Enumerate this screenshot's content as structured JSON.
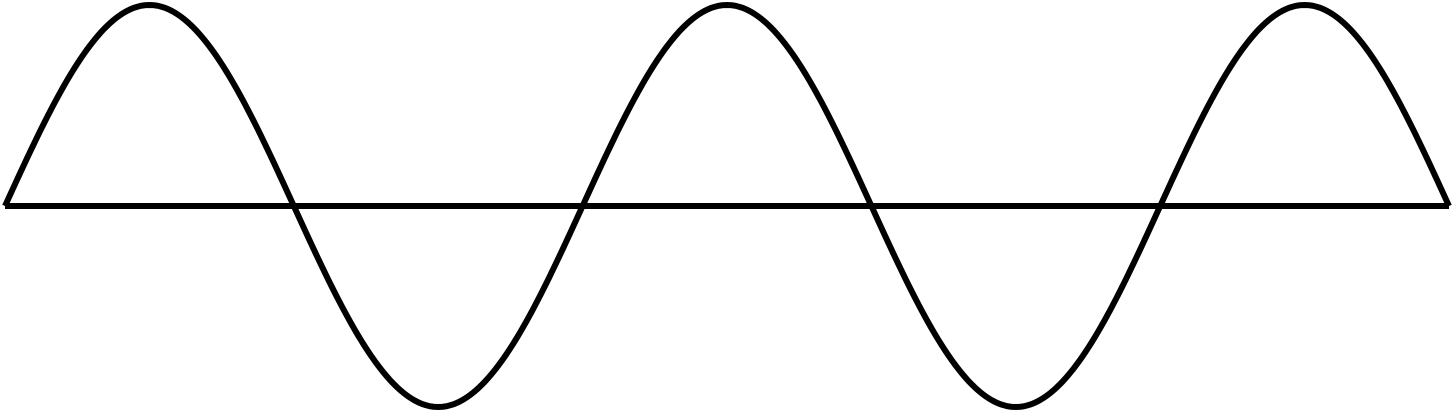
{
  "diagram": {
    "type": "sine-wave",
    "cycles": 2.5,
    "stroke_color": "#000000",
    "background_color": "#ffffff"
  }
}
